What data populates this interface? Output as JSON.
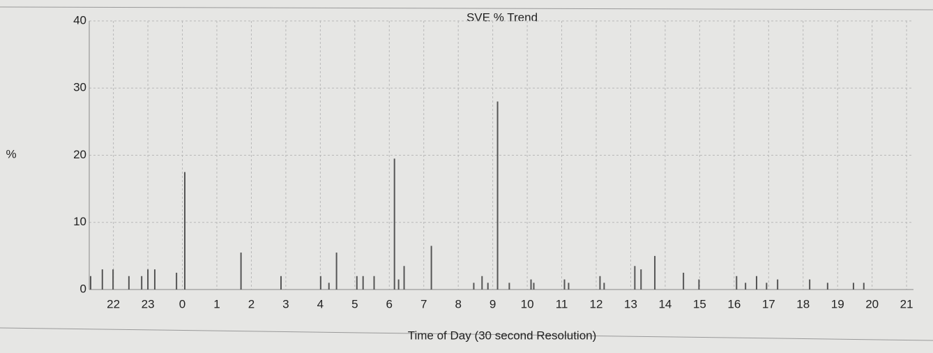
{
  "chart_data": {
    "type": "spike",
    "title": "SVE % Trend",
    "ylabel": "%",
    "xlabel": "Time of Day (30 second Resolution)",
    "color": "#555555",
    "grid": true,
    "xlim": [
      21.3,
      45.2
    ],
    "ylim": [
      0,
      40
    ],
    "yticks": [
      0,
      10,
      20,
      30,
      40
    ],
    "xticks": [
      22,
      23,
      {
        "value": 24,
        "label": "0"
      },
      {
        "value": 25,
        "label": "1"
      },
      {
        "value": 26,
        "label": "2"
      },
      {
        "value": 27,
        "label": "3"
      },
      {
        "value": 28,
        "label": "4"
      },
      {
        "value": 29,
        "label": "5"
      },
      {
        "value": 30,
        "label": "6"
      },
      {
        "value": 31,
        "label": "7"
      },
      {
        "value": 32,
        "label": "8"
      },
      {
        "value": 33,
        "label": "9"
      },
      {
        "value": 34,
        "label": "10"
      },
      {
        "value": 35,
        "label": "11"
      },
      {
        "value": 36,
        "label": "12"
      },
      {
        "value": 37,
        "label": "13"
      },
      {
        "value": 38,
        "label": "14"
      },
      {
        "value": 39,
        "label": "15"
      },
      {
        "value": 40,
        "label": "16"
      },
      {
        "value": 41,
        "label": "17"
      },
      {
        "value": 42,
        "label": "18"
      },
      {
        "value": 43,
        "label": "19"
      },
      {
        "value": 44,
        "label": "20"
      },
      {
        "value": 45,
        "label": "21"
      }
    ],
    "x": [
      21.34,
      21.68,
      21.99,
      22.45,
      22.82,
      23.0,
      23.2,
      23.83,
      24.07,
      25.7,
      26.86,
      28.01,
      28.25,
      28.47,
      29.06,
      29.24,
      29.56,
      30.15,
      30.27,
      30.43,
      31.22,
      32.45,
      32.69,
      32.86,
      33.14,
      33.48,
      34.11,
      34.19,
      35.08,
      35.2,
      36.11,
      36.23,
      37.12,
      37.3,
      37.7,
      38.53,
      38.98,
      40.07,
      40.33,
      40.65,
      40.94,
      41.26,
      42.19,
      42.71,
      43.46,
      43.76
    ],
    "values": [
      2,
      3,
      3,
      2,
      2,
      3,
      3,
      2.5,
      17.5,
      5.5,
      2,
      2,
      1,
      5.5,
      2,
      2,
      2,
      19.5,
      1.5,
      3.5,
      6.5,
      1,
      2,
      1,
      28,
      1,
      1.5,
      1,
      1.5,
      1,
      2,
      1,
      3.5,
      3,
      5,
      2.5,
      1.5,
      2,
      1,
      2,
      1,
      1.5,
      1.5,
      1,
      1,
      1
    ]
  }
}
